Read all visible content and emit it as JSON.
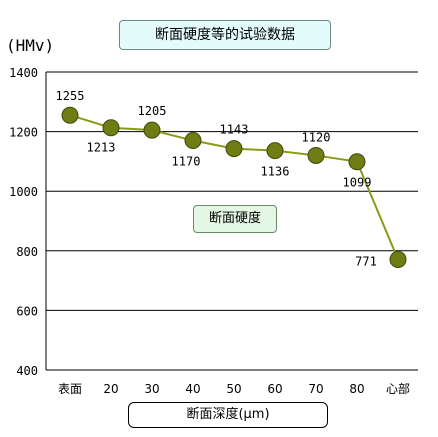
{
  "chart_data": {
    "type": "line",
    "title": "断面硬度等的试验数据",
    "ylabel": "(HMv)",
    "xlabel": "断面深度(μm)",
    "categories": [
      "表面",
      "20",
      "30",
      "40",
      "50",
      "60",
      "70",
      "80",
      "心部"
    ],
    "series": [
      {
        "name": "断面硬度",
        "values": [
          1255,
          1213,
          1205,
          1170,
          1143,
          1136,
          1120,
          1099,
          771
        ]
      }
    ],
    "data_labels": [
      "1255",
      "1213",
      "1205",
      "1170",
      "1143",
      "1136",
      "1120",
      "1099",
      "771"
    ],
    "ylim": [
      400,
      1400
    ],
    "yticks": [
      400,
      600,
      800,
      1000,
      1200,
      1400
    ],
    "grid": true,
    "legend": "center",
    "colors": {
      "line": "#8a9a18",
      "marker": "#6f7d14",
      "marker_stroke": "#3f4a0a"
    }
  }
}
